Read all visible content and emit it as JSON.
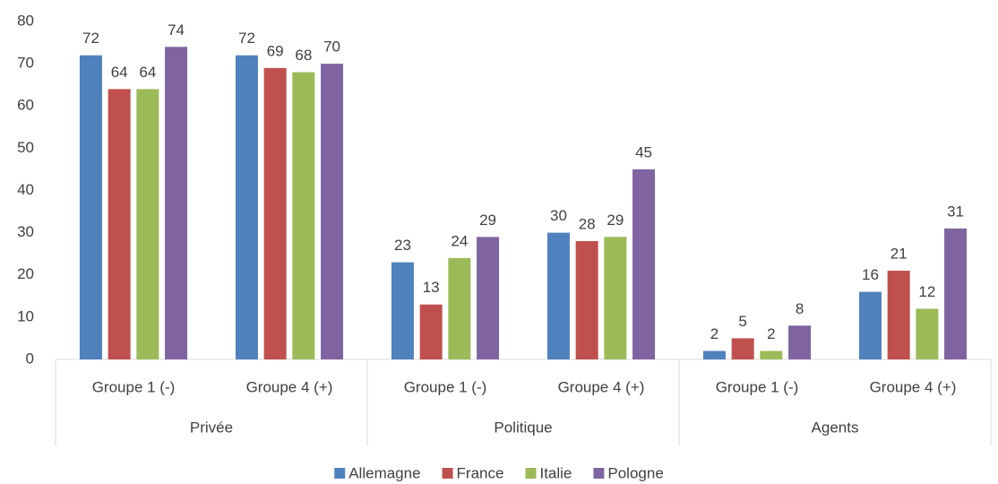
{
  "chart_data": {
    "type": "bar",
    "categories": [
      "Groupe 1 (-)",
      "Groupe 4 (+)",
      "Groupe 1 (-)",
      "Groupe 4 (+)",
      "Groupe 1 (-)",
      "Groupe 4 (+)"
    ],
    "groups": [
      "Privée",
      "Politique",
      "Agents"
    ],
    "series": [
      {
        "name": "Allemagne",
        "color": "#4f81bd",
        "values": [
          72,
          72,
          23,
          30,
          2,
          16
        ]
      },
      {
        "name": "France",
        "color": "#c0504d",
        "values": [
          64,
          69,
          13,
          28,
          5,
          21
        ]
      },
      {
        "name": "Italie",
        "color": "#9bbb59",
        "values": [
          64,
          68,
          24,
          29,
          2,
          12
        ]
      },
      {
        "name": "Pologne",
        "color": "#8064a2",
        "values": [
          74,
          70,
          29,
          45,
          8,
          31
        ]
      }
    ],
    "ylim": [
      0,
      80
    ],
    "yticks": [
      0,
      10,
      20,
      30,
      40,
      50,
      60,
      70,
      80
    ],
    "grid": false,
    "legend": "bottom"
  }
}
